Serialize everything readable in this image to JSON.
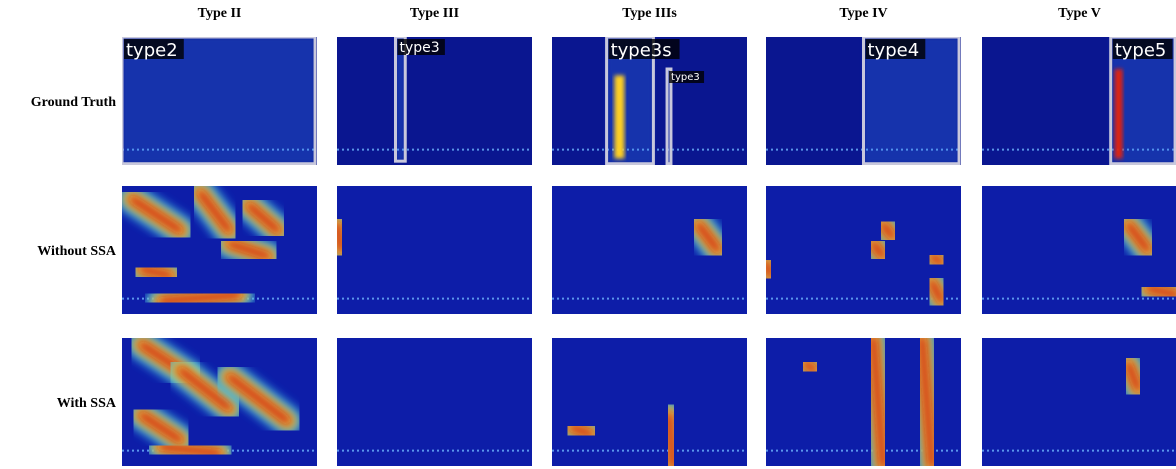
{
  "columns": [
    "Type II",
    "Type III",
    "Type IIIs",
    "Type IV",
    "Type V"
  ],
  "rows": [
    "Ground Truth",
    "Without SSA",
    "With SSA"
  ],
  "annotations": [
    [
      "type2"
    ],
    [
      "type3"
    ],
    [
      "type3s",
      "type3"
    ],
    [
      "type4"
    ],
    [
      "type5"
    ]
  ]
}
